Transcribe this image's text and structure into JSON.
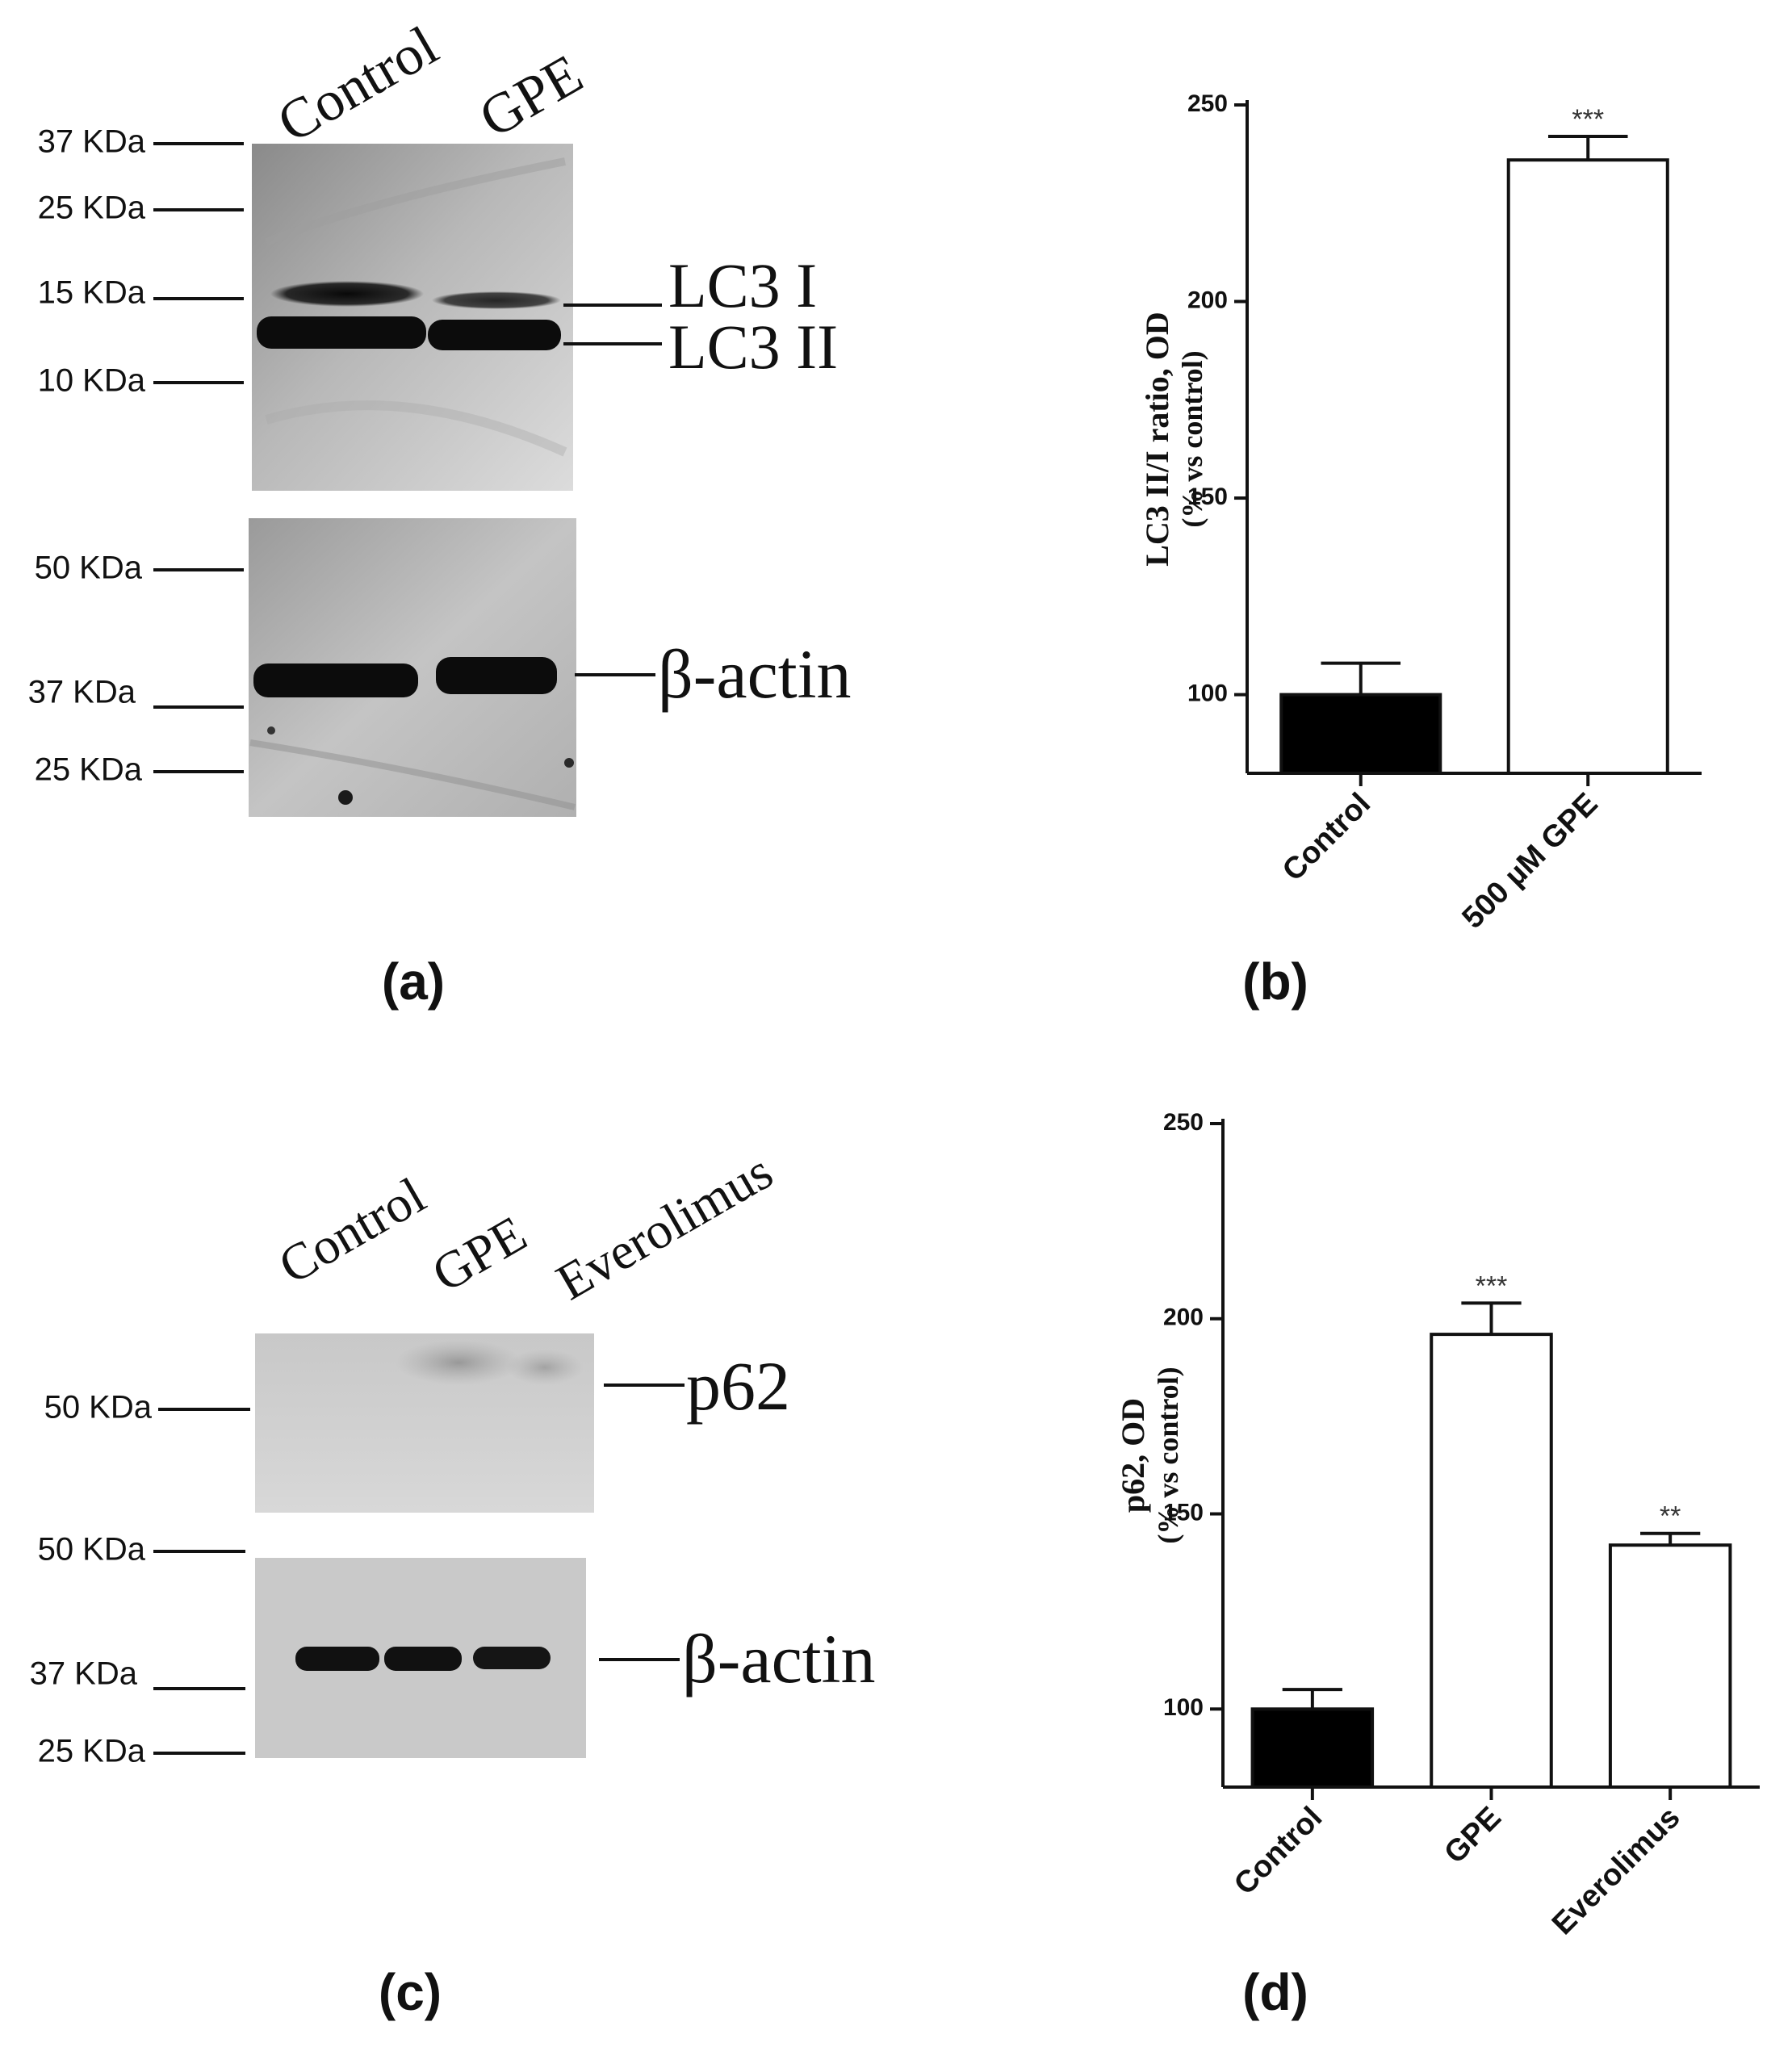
{
  "panel_a": {
    "lane_labels": [
      "Control",
      "GPE"
    ],
    "blot_top": {
      "markers": [
        "37 KDa",
        "25 KDa",
        "15 KDa",
        "10 KDa"
      ],
      "band_labels": [
        "LC3 I",
        "LC3 II"
      ]
    },
    "blot_bottom": {
      "markers": [
        "50 KDa",
        "37 KDa",
        "25 KDa"
      ],
      "band_labels": [
        "β-actin"
      ]
    },
    "caption": "(a)"
  },
  "panel_c": {
    "lane_labels": [
      "Control",
      "GPE",
      "Everolimus"
    ],
    "blot_top": {
      "markers": [
        "50 KDa"
      ],
      "band_labels": [
        "p62"
      ]
    },
    "blot_bottom": {
      "markers": [
        "50 KDa",
        "37 KDa",
        "25 KDa"
      ],
      "band_labels": [
        "β-actin"
      ]
    },
    "caption": "(c)"
  },
  "panel_b_caption": "(b)",
  "panel_d_caption": "(d)",
  "chart_data": [
    {
      "type": "bar",
      "categories": [
        "Control",
        "500 µM GPE"
      ],
      "values": [
        100,
        236
      ],
      "errors": [
        8,
        6
      ],
      "significance": [
        "",
        "***"
      ],
      "bar_colors": [
        "#000000",
        "#ffffff"
      ],
      "ylabel": "LC3 II/I ratio, OD",
      "ylabel2": "(% vs control)",
      "ylim": [
        80,
        250
      ],
      "yticks": [
        100,
        150,
        200,
        250
      ]
    },
    {
      "type": "bar",
      "categories": [
        "Control",
        "GPE",
        "Everolimus"
      ],
      "values": [
        100,
        196,
        142
      ],
      "errors": [
        5,
        8,
        3
      ],
      "significance": [
        "",
        "***",
        "**"
      ],
      "bar_colors": [
        "#000000",
        "#ffffff",
        "#ffffff"
      ],
      "ylabel": "p62, OD",
      "ylabel2": "(% vs control)",
      "ylim": [
        80,
        250
      ],
      "yticks": [
        100,
        150,
        200,
        250
      ]
    }
  ]
}
